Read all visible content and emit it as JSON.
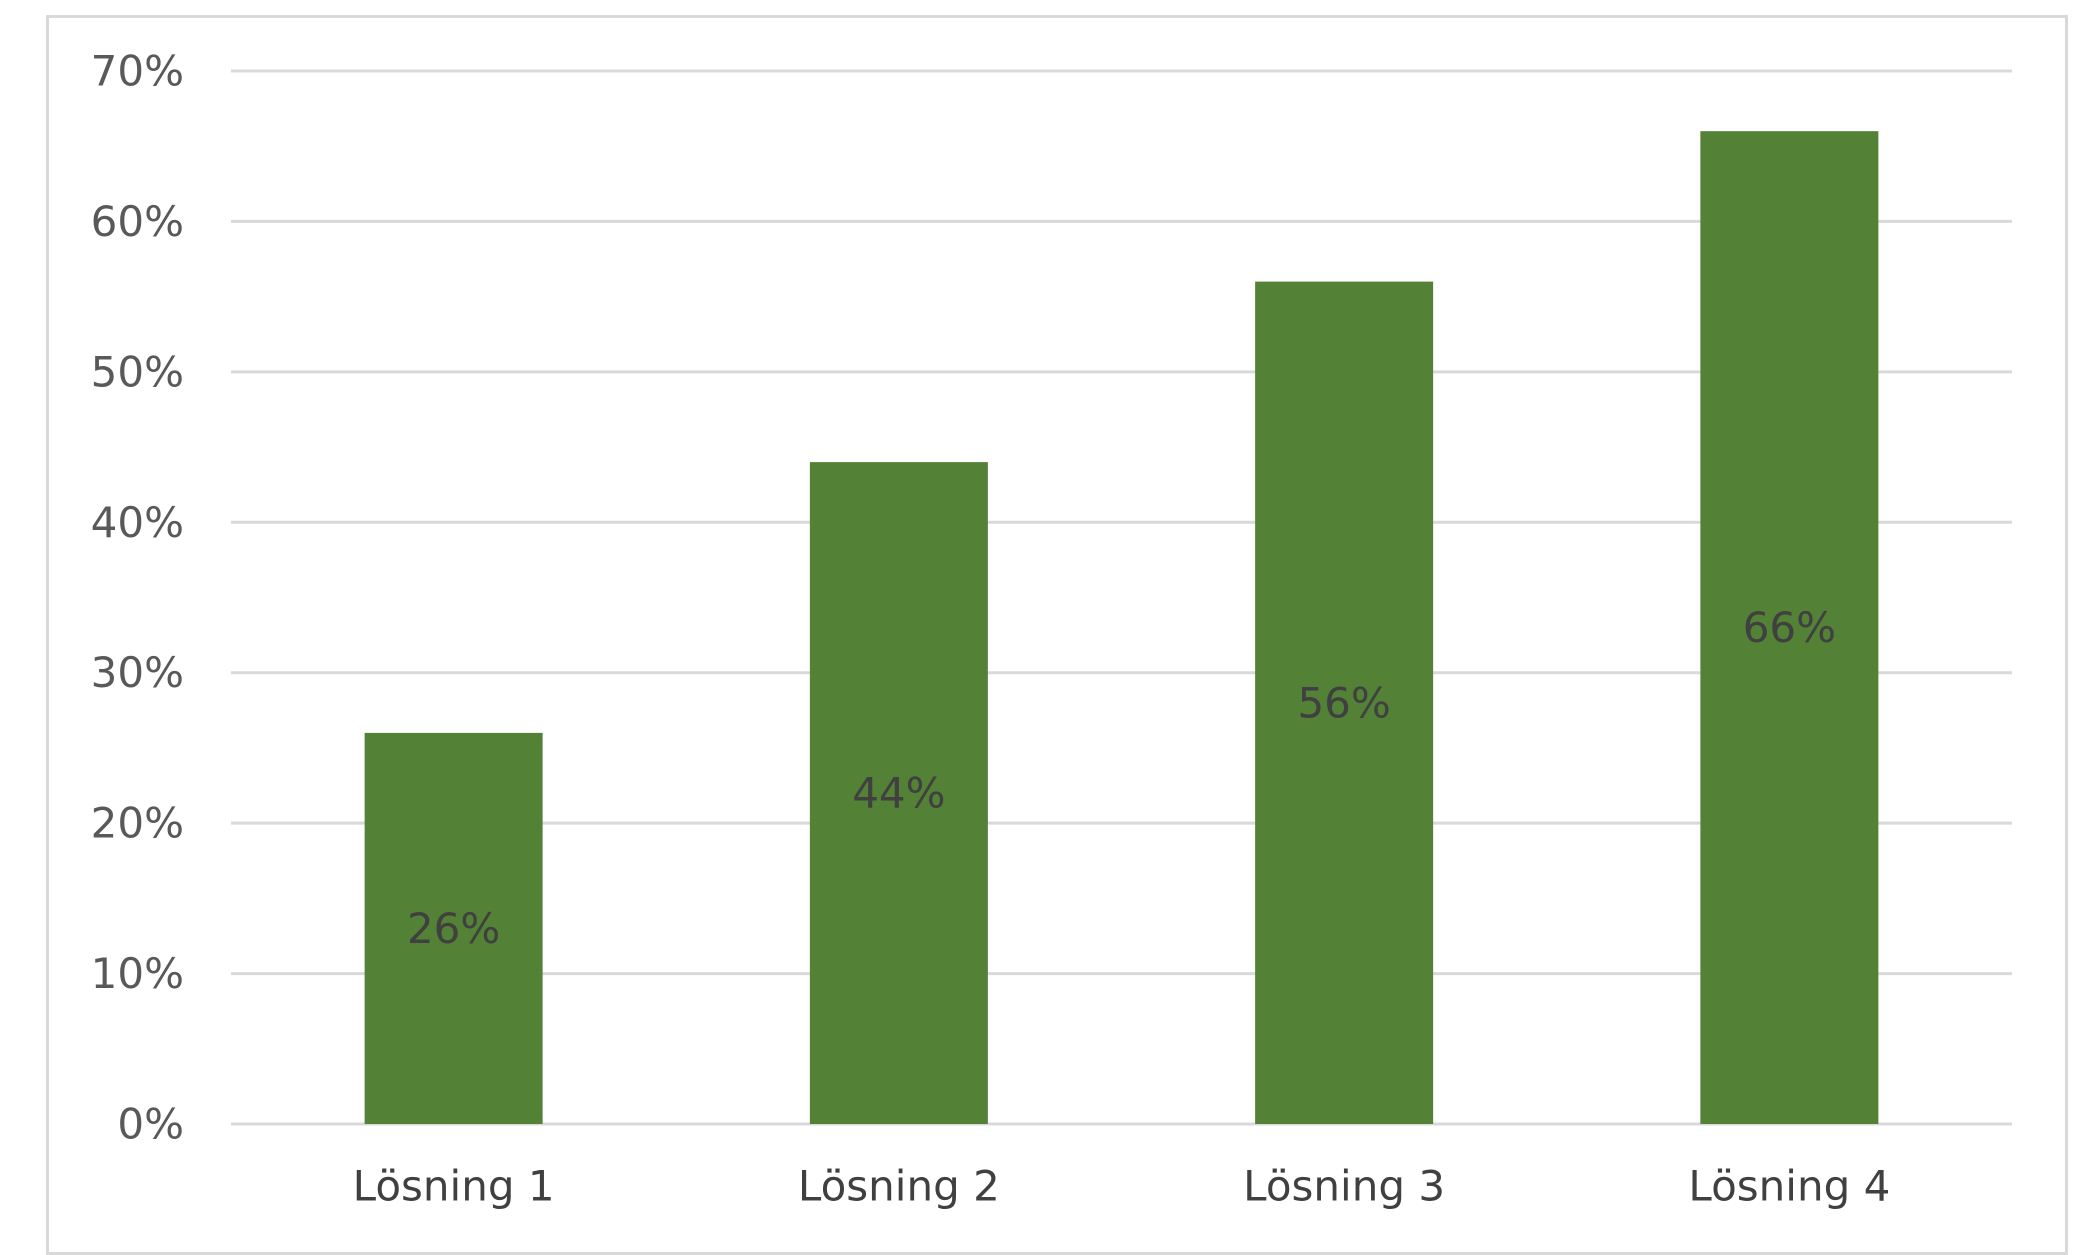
{
  "chart_data": {
    "type": "bar",
    "categories": [
      "Lösning 1",
      "Lösning 2",
      "Lösning 3",
      "Lösning 4"
    ],
    "values": [
      26,
      44,
      56,
      66
    ],
    "data_labels": [
      "26%",
      "44%",
      "56%",
      "66%"
    ],
    "title": "",
    "xlabel": "",
    "ylabel": "",
    "ylim": [
      0,
      70
    ],
    "y_ticks": [
      0,
      10,
      20,
      30,
      40,
      50,
      60,
      70
    ],
    "y_tick_labels": [
      "0%",
      "10%",
      "20%",
      "30%",
      "40%",
      "50%",
      "60%",
      "70%"
    ],
    "grid": true,
    "legend": "none",
    "colors": {
      "bar": "#538135",
      "grid": "#d9d9d9",
      "axis_text": "#595959",
      "data_label": "#404040"
    }
  }
}
